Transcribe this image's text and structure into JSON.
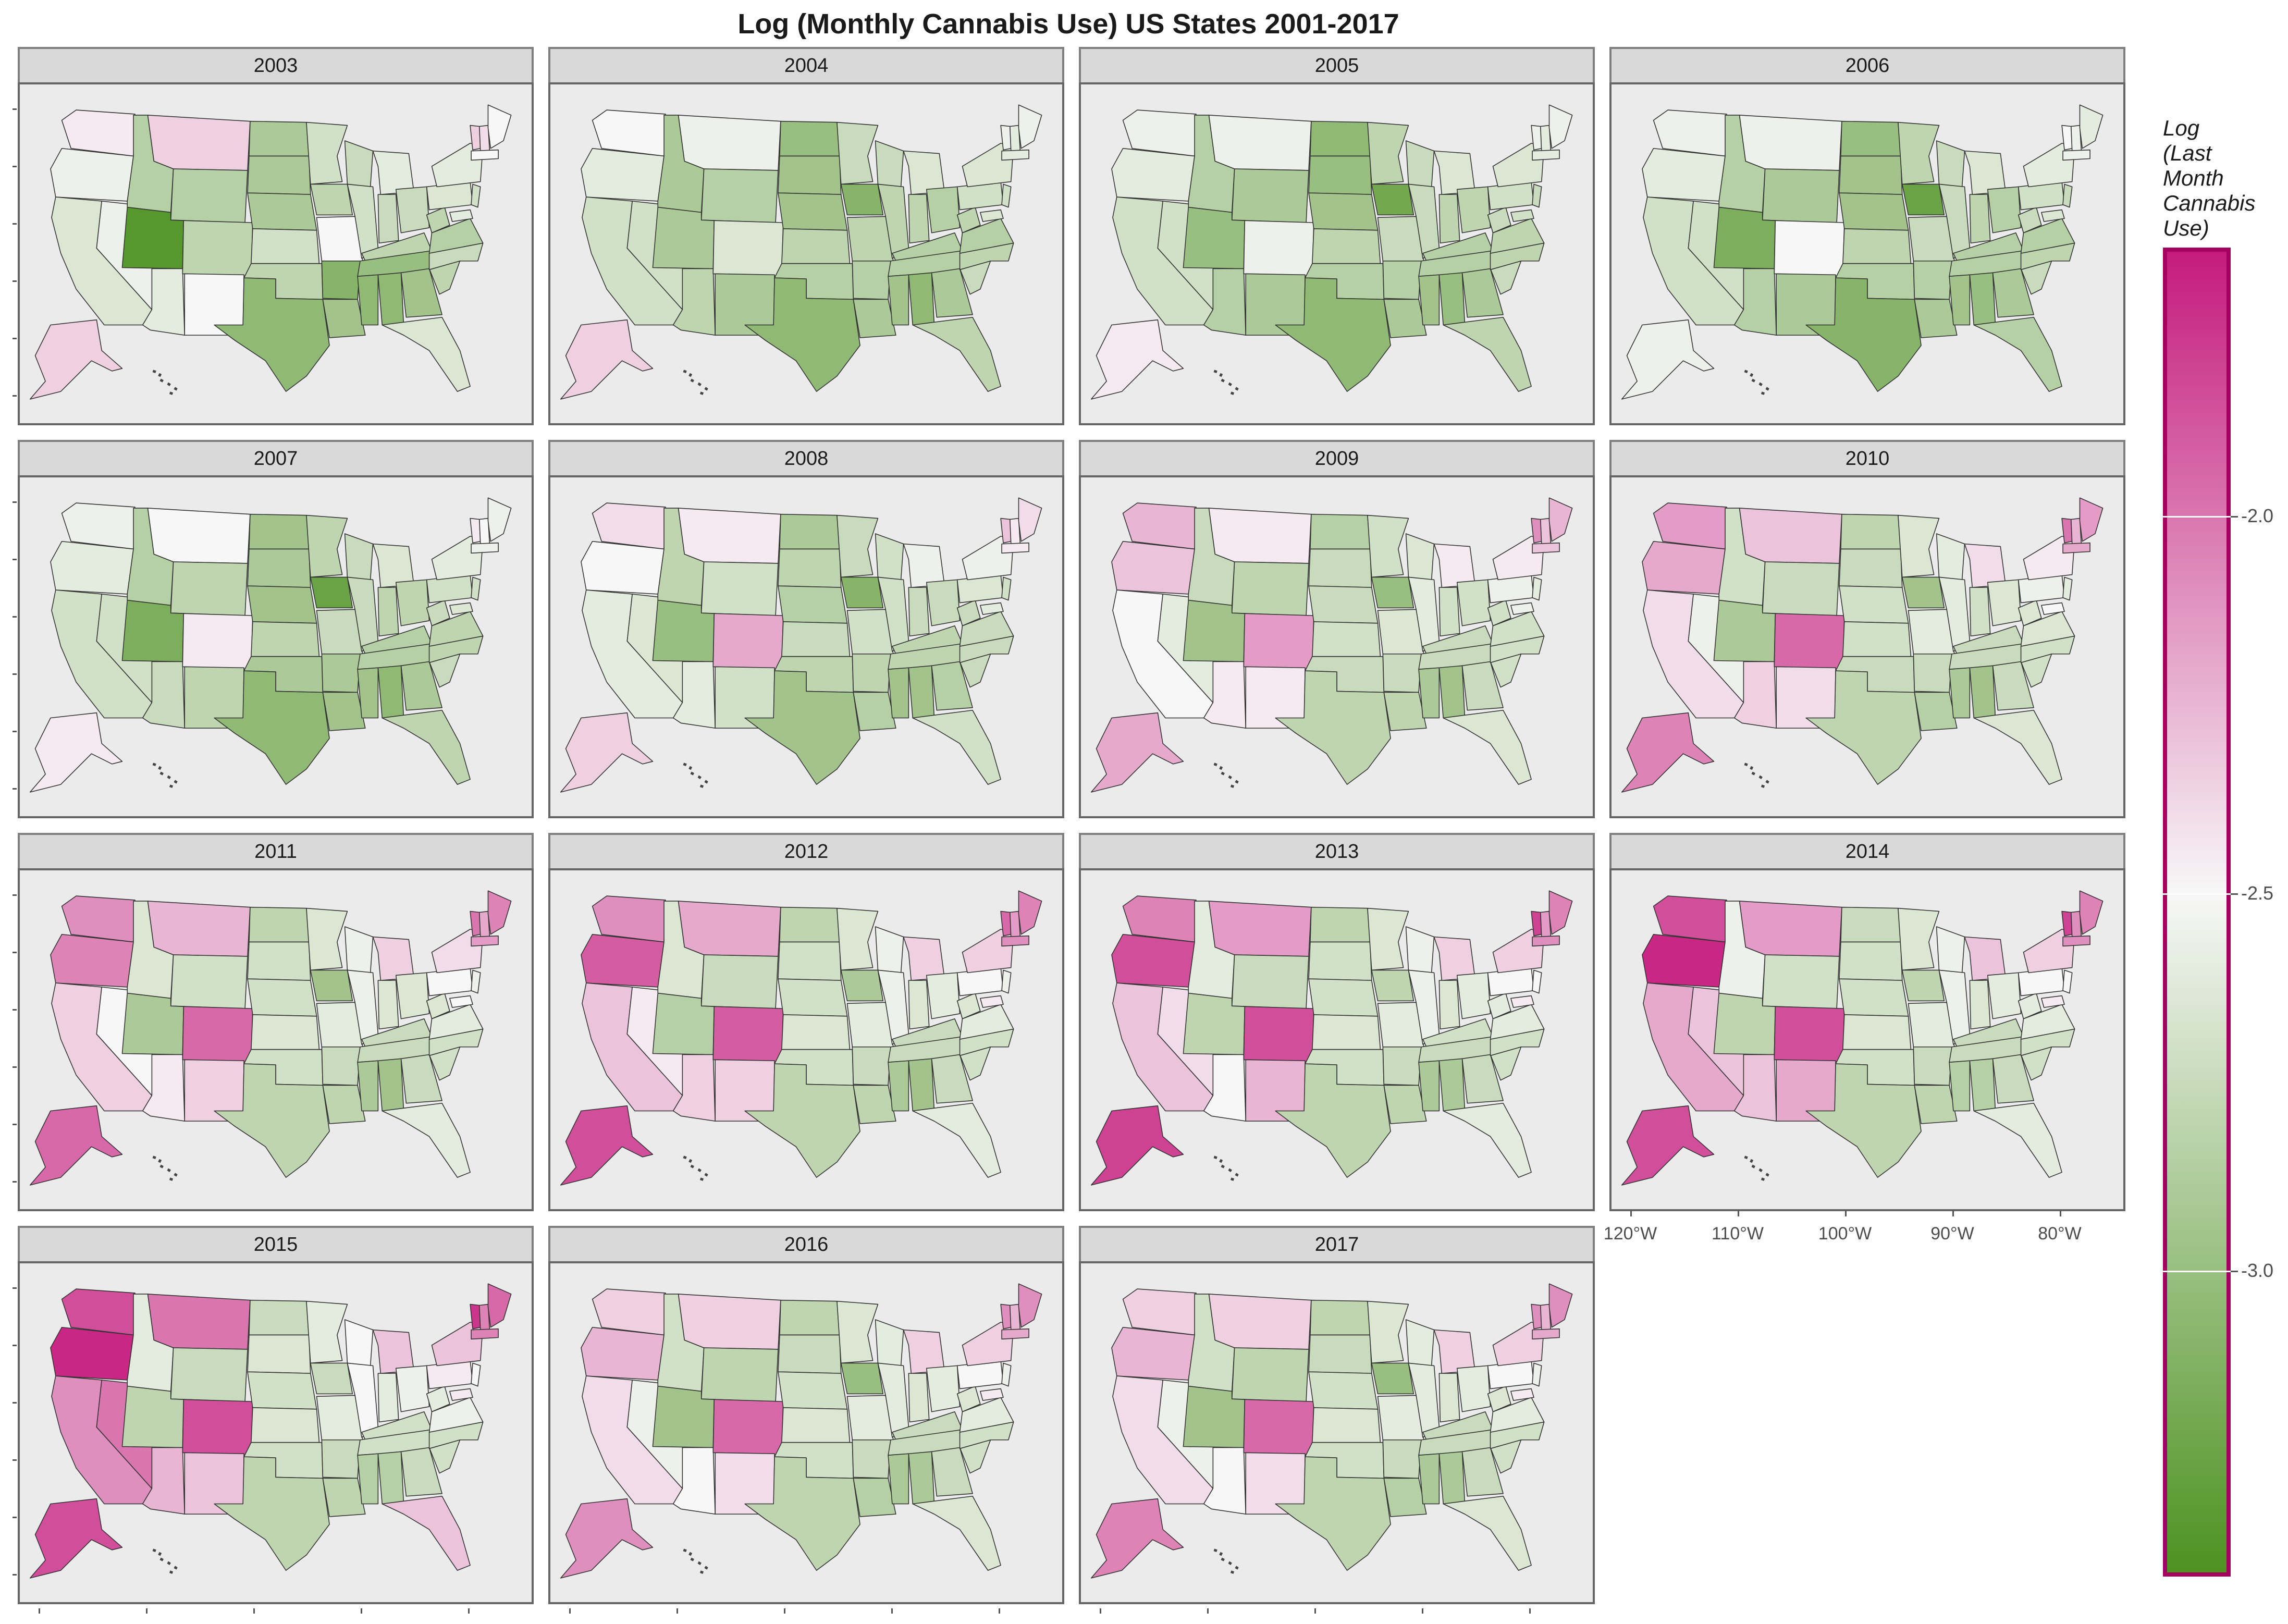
{
  "chart_data": {
    "type": "choropleth-map-facets",
    "title": "Log (Monthly Cannabis Use) US States 2001-2017",
    "legend": {
      "title": "Log (Last Month Cannabis Use)",
      "title_lines": [
        "Log",
        "(Last",
        "Month",
        "Cannabis",
        "Use)"
      ],
      "ticks": [
        {
          "value": -2.0,
          "label": "-2.0"
        },
        {
          "value": -2.5,
          "label": "-2.5"
        },
        {
          "value": -3.0,
          "label": "-3.0"
        }
      ],
      "range": [
        -3.4,
        -1.65
      ],
      "colors": {
        "low": "#4d9221",
        "mid": "#f7f7f7",
        "high": "#c51b7d"
      },
      "border_color": "#a3005f"
    },
    "x_axis_labels": [
      "120°W",
      "110°W",
      "100°W",
      "90°W",
      "80°W"
    ],
    "x_axis_lon": [
      -120,
      -110,
      -100,
      -90,
      -80
    ],
    "region_order": [
      "WA",
      "OR",
      "CA",
      "NV",
      "ID",
      "MT",
      "WY",
      "UT",
      "AZ",
      "CO",
      "NM",
      "ND",
      "SD",
      "NE",
      "KS",
      "OK",
      "TX",
      "MN",
      "IA",
      "MO",
      "AR",
      "LA",
      "WI",
      "IL",
      "MI",
      "IN",
      "OH",
      "KY",
      "TN",
      "MS",
      "AL",
      "GA",
      "FL",
      "SC",
      "NC",
      "VA",
      "WV",
      "PA",
      "NY",
      "VT",
      "NH",
      "ME",
      "MA",
      "NJ",
      "MD",
      "AK"
    ],
    "facets": [
      {
        "year": "2003",
        "values": [
          -2.45,
          -2.55,
          -2.65,
          -2.55,
          -2.85,
          -2.35,
          -2.85,
          -3.35,
          -2.6,
          -2.8,
          -2.5,
          -2.9,
          -2.9,
          -2.9,
          -2.7,
          -2.8,
          -3.05,
          -2.7,
          -2.8,
          -2.5,
          -3.1,
          -2.95,
          -2.75,
          -2.7,
          -2.6,
          -2.75,
          -2.75,
          -2.8,
          -3.0,
          -3.05,
          -3.05,
          -2.95,
          -2.65,
          -2.8,
          -2.75,
          -2.85,
          -2.8,
          -2.65,
          -2.6,
          -2.35,
          -2.4,
          -2.5,
          -2.5,
          -2.7,
          -2.6,
          -2.35
        ]
      },
      {
        "year": "2004",
        "values": [
          -2.5,
          -2.6,
          -2.7,
          -2.7,
          -2.9,
          -2.55,
          -2.85,
          -2.9,
          -2.8,
          -2.65,
          -2.9,
          -3.0,
          -2.95,
          -2.95,
          -2.8,
          -2.85,
          -3.05,
          -2.75,
          -3.1,
          -2.8,
          -2.85,
          -2.9,
          -2.75,
          -2.8,
          -2.65,
          -2.8,
          -2.85,
          -2.85,
          -2.85,
          -2.95,
          -3.05,
          -2.9,
          -2.8,
          -2.75,
          -2.8,
          -2.85,
          -2.8,
          -2.7,
          -2.65,
          -2.55,
          -2.6,
          -2.55,
          -2.6,
          -2.7,
          -2.65,
          -2.35
        ]
      },
      {
        "year": "2005",
        "values": [
          -2.55,
          -2.6,
          -2.7,
          -2.7,
          -2.85,
          -2.55,
          -2.9,
          -3.0,
          -2.85,
          -2.55,
          -2.9,
          -3.05,
          -3.0,
          -2.95,
          -2.8,
          -2.85,
          -3.05,
          -2.8,
          -3.2,
          -2.75,
          -2.85,
          -2.9,
          -2.75,
          -2.75,
          -2.65,
          -2.8,
          -2.8,
          -2.85,
          -2.85,
          -2.95,
          -3.0,
          -2.9,
          -2.8,
          -2.75,
          -2.8,
          -2.8,
          -2.75,
          -2.7,
          -2.65,
          -2.55,
          -2.6,
          -2.55,
          -2.6,
          -2.75,
          -2.7,
          -2.45
        ]
      },
      {
        "year": "2006",
        "values": [
          -2.55,
          -2.6,
          -2.7,
          -2.7,
          -2.85,
          -2.55,
          -2.9,
          -3.15,
          -2.85,
          -2.5,
          -2.9,
          -3.0,
          -2.95,
          -2.95,
          -2.8,
          -2.85,
          -3.1,
          -2.8,
          -3.25,
          -2.75,
          -2.85,
          -2.9,
          -2.75,
          -2.75,
          -2.65,
          -2.8,
          -2.85,
          -2.85,
          -2.85,
          -2.95,
          -3.0,
          -2.9,
          -2.85,
          -2.75,
          -2.8,
          -2.85,
          -2.75,
          -2.7,
          -2.6,
          -2.5,
          -2.55,
          -2.6,
          -2.55,
          -2.75,
          -2.65,
          -2.55
        ]
      },
      {
        "year": "2007",
        "values": [
          -2.55,
          -2.6,
          -2.7,
          -2.7,
          -2.85,
          -2.5,
          -2.8,
          -3.15,
          -2.75,
          -2.45,
          -2.8,
          -2.95,
          -2.9,
          -2.95,
          -2.8,
          -2.9,
          -3.05,
          -2.8,
          -3.25,
          -2.75,
          -2.9,
          -2.95,
          -2.75,
          -2.75,
          -2.65,
          -2.8,
          -2.8,
          -2.85,
          -2.85,
          -2.95,
          -3.05,
          -2.9,
          -2.8,
          -2.75,
          -2.8,
          -2.8,
          -2.75,
          -2.7,
          -2.6,
          -2.45,
          -2.5,
          -2.55,
          -2.55,
          -2.7,
          -2.65,
          -2.45
        ]
      },
      {
        "year": "2008",
        "values": [
          -2.4,
          -2.5,
          -2.6,
          -2.65,
          -2.8,
          -2.45,
          -2.7,
          -3.0,
          -2.6,
          -2.2,
          -2.7,
          -2.9,
          -2.8,
          -2.85,
          -2.75,
          -2.8,
          -2.95,
          -2.75,
          -3.1,
          -2.7,
          -2.8,
          -2.85,
          -2.7,
          -2.7,
          -2.55,
          -2.75,
          -2.75,
          -2.8,
          -2.8,
          -2.95,
          -2.95,
          -2.85,
          -2.7,
          -2.75,
          -2.75,
          -2.75,
          -2.75,
          -2.65,
          -2.55,
          -2.3,
          -2.45,
          -2.4,
          -2.45,
          -2.7,
          -2.6,
          -2.35
        ]
      },
      {
        "year": "2009",
        "values": [
          -2.25,
          -2.3,
          -2.5,
          -2.6,
          -2.75,
          -2.45,
          -2.8,
          -2.95,
          -2.45,
          -2.15,
          -2.45,
          -2.85,
          -2.75,
          -2.75,
          -2.7,
          -2.75,
          -2.8,
          -2.7,
          -3.0,
          -2.65,
          -2.75,
          -2.8,
          -2.65,
          -2.6,
          -2.45,
          -2.7,
          -2.7,
          -2.75,
          -2.75,
          -2.9,
          -2.95,
          -2.75,
          -2.65,
          -2.7,
          -2.7,
          -2.7,
          -2.7,
          -2.55,
          -2.45,
          -2.1,
          -2.3,
          -2.25,
          -2.3,
          -2.6,
          -2.55,
          -2.2
        ]
      },
      {
        "year": "2010",
        "values": [
          -2.15,
          -2.2,
          -2.4,
          -2.55,
          -2.7,
          -2.3,
          -2.75,
          -2.9,
          -2.35,
          -1.95,
          -2.4,
          -2.8,
          -2.75,
          -2.7,
          -2.7,
          -2.75,
          -2.8,
          -2.65,
          -2.95,
          -2.6,
          -2.75,
          -2.85,
          -2.6,
          -2.6,
          -2.4,
          -2.7,
          -2.65,
          -2.75,
          -2.75,
          -2.9,
          -2.95,
          -2.75,
          -2.65,
          -2.7,
          -2.7,
          -2.65,
          -2.65,
          -2.55,
          -2.45,
          -2.0,
          -2.25,
          -2.15,
          -2.2,
          -2.6,
          -2.5,
          -2.05
        ]
      },
      {
        "year": "2011",
        "values": [
          -2.1,
          -2.05,
          -2.35,
          -2.5,
          -2.65,
          -2.25,
          -2.7,
          -2.9,
          -2.45,
          -1.95,
          -2.35,
          -2.8,
          -2.7,
          -2.7,
          -2.65,
          -2.7,
          -2.8,
          -2.65,
          -2.95,
          -2.6,
          -2.75,
          -2.8,
          -2.55,
          -2.55,
          -2.35,
          -2.65,
          -2.65,
          -2.75,
          -2.75,
          -2.9,
          -2.95,
          -2.75,
          -2.6,
          -2.7,
          -2.7,
          -2.6,
          -2.65,
          -2.5,
          -2.4,
          -2.0,
          -2.2,
          -2.05,
          -2.15,
          -2.55,
          -2.5,
          -1.95
        ]
      },
      {
        "year": "2012",
        "values": [
          -2.1,
          -1.9,
          -2.3,
          -2.45,
          -2.65,
          -2.2,
          -2.75,
          -2.85,
          -2.35,
          -1.9,
          -2.35,
          -2.8,
          -2.7,
          -2.7,
          -2.65,
          -2.7,
          -2.8,
          -2.65,
          -2.9,
          -2.6,
          -2.75,
          -2.8,
          -2.55,
          -2.55,
          -2.35,
          -2.65,
          -2.6,
          -2.75,
          -2.75,
          -2.9,
          -2.95,
          -2.75,
          -2.6,
          -2.7,
          -2.7,
          -2.6,
          -2.65,
          -2.5,
          -2.35,
          -1.95,
          -2.15,
          -2.05,
          -2.1,
          -2.55,
          -2.45,
          -1.85
        ]
      },
      {
        "year": "2013",
        "values": [
          -2.05,
          -1.85,
          -2.3,
          -2.4,
          -2.6,
          -2.15,
          -2.75,
          -2.8,
          -2.5,
          -1.85,
          -2.25,
          -2.8,
          -2.7,
          -2.7,
          -2.65,
          -2.7,
          -2.8,
          -2.65,
          -2.8,
          -2.6,
          -2.75,
          -2.8,
          -2.55,
          -2.55,
          -2.35,
          -2.65,
          -2.6,
          -2.7,
          -2.75,
          -2.9,
          -2.9,
          -2.75,
          -2.6,
          -2.7,
          -2.7,
          -2.6,
          -2.6,
          -2.5,
          -2.35,
          -1.8,
          -2.15,
          -2.05,
          -2.1,
          -2.5,
          -2.45,
          -1.8
        ]
      },
      {
        "year": "2014",
        "values": [
          -1.85,
          -1.7,
          -2.2,
          -2.3,
          -2.55,
          -2.15,
          -2.7,
          -2.8,
          -2.3,
          -1.85,
          -2.2,
          -2.75,
          -2.7,
          -2.7,
          -2.65,
          -2.7,
          -2.8,
          -2.65,
          -2.8,
          -2.6,
          -2.75,
          -2.8,
          -2.55,
          -2.55,
          -2.3,
          -2.65,
          -2.6,
          -2.75,
          -2.75,
          -2.85,
          -2.85,
          -2.75,
          -2.6,
          -2.7,
          -2.7,
          -2.6,
          -2.6,
          -2.5,
          -2.35,
          -1.8,
          -2.1,
          -2.05,
          -2.1,
          -2.5,
          -2.45,
          -1.85
        ]
      },
      {
        "year": "2015",
        "values": [
          -1.85,
          -1.7,
          -2.1,
          -2.0,
          -2.6,
          -2.0,
          -2.75,
          -2.8,
          -2.25,
          -1.85,
          -2.3,
          -2.75,
          -2.65,
          -2.7,
          -2.65,
          -2.7,
          -2.8,
          -2.6,
          -2.75,
          -2.6,
          -2.75,
          -2.8,
          -2.5,
          -2.5,
          -2.3,
          -2.6,
          -2.55,
          -2.7,
          -2.7,
          -2.85,
          -2.85,
          -2.75,
          -2.3,
          -2.7,
          -2.7,
          -2.55,
          -2.6,
          -2.45,
          -2.3,
          -1.75,
          -2.05,
          -1.95,
          -2.05,
          -2.5,
          -2.45,
          -1.85
        ]
      },
      {
        "year": "2016",
        "values": [
          -2.35,
          -2.25,
          -2.4,
          -2.55,
          -2.7,
          -2.35,
          -2.8,
          -2.95,
          -2.5,
          -1.95,
          -2.4,
          -2.8,
          -2.75,
          -2.7,
          -2.65,
          -2.7,
          -2.8,
          -2.65,
          -3.0,
          -2.6,
          -2.75,
          -2.85,
          -2.6,
          -2.6,
          -2.35,
          -2.65,
          -2.6,
          -2.75,
          -2.75,
          -2.9,
          -2.9,
          -2.75,
          -2.65,
          -2.7,
          -2.7,
          -2.6,
          -2.65,
          -2.5,
          -2.35,
          -2.1,
          -2.25,
          -2.1,
          -2.2,
          -2.55,
          -2.45,
          -2.1
        ]
      },
      {
        "year": "2017",
        "values": [
          -2.35,
          -2.25,
          -2.4,
          -2.55,
          -2.7,
          -2.35,
          -2.8,
          -2.95,
          -2.5,
          -1.95,
          -2.4,
          -2.8,
          -2.75,
          -2.7,
          -2.65,
          -2.7,
          -2.8,
          -2.65,
          -3.0,
          -2.6,
          -2.75,
          -2.85,
          -2.6,
          -2.6,
          -2.35,
          -2.65,
          -2.6,
          -2.75,
          -2.75,
          -2.9,
          -2.9,
          -2.75,
          -2.65,
          -2.7,
          -2.7,
          -2.6,
          -2.65,
          -2.5,
          -2.35,
          -2.1,
          -2.25,
          -2.1,
          -2.2,
          -2.55,
          -2.45,
          -2.05
        ]
      }
    ]
  }
}
